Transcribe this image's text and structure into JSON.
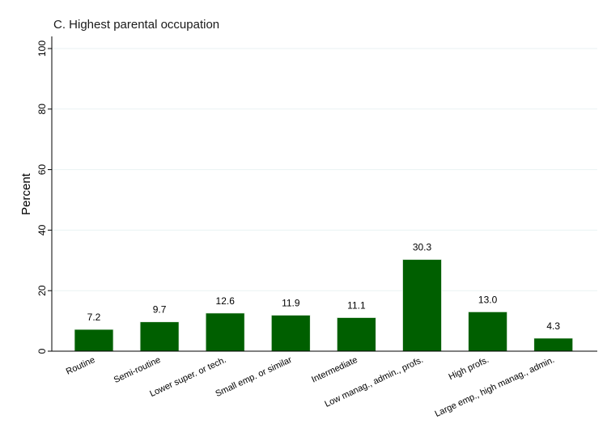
{
  "chart_data": {
    "type": "bar",
    "title": "C. Highest parental occupation",
    "xlabel": "",
    "ylabel": "Percent",
    "ylim": [
      0,
      100
    ],
    "yticks": [
      0,
      20,
      40,
      60,
      80,
      100
    ],
    "grid": true,
    "categories": [
      "Routine",
      "Semi-routine",
      "Lower super. or tech.",
      "Small emp. or similar",
      "Intermediate",
      "Low manag., admin., profs.",
      "High profs.",
      "Large emp., high manag., admin."
    ],
    "values": [
      7.2,
      9.7,
      12.6,
      11.9,
      11.1,
      30.3,
      13.0,
      4.3
    ],
    "value_labels": [
      "7.2",
      "9.7",
      "12.6",
      "11.9",
      "11.1",
      "30.3",
      "13.0",
      "4.3"
    ],
    "bar_color": "#005f00"
  }
}
